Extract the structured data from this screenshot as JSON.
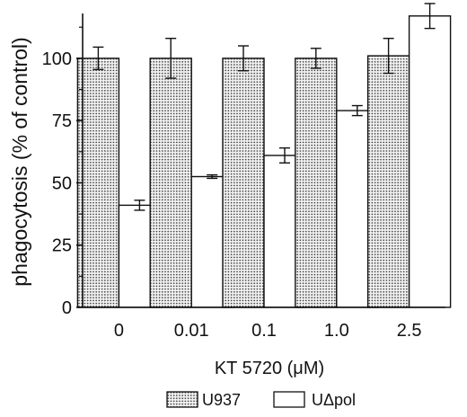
{
  "chart_data": {
    "type": "bar",
    "xlabel": "KT 5720 (μM)",
    "ylabel": "phagocytosis (% of control)",
    "categories": [
      "0",
      "0.01",
      "0.1",
      "1.0",
      "2.5"
    ],
    "ylim": [
      0,
      118
    ],
    "yticks": [
      0,
      25,
      50,
      75,
      100
    ],
    "grid": false,
    "legend_position": "bottom-center",
    "series": [
      {
        "name": "U937",
        "values": [
          100,
          100,
          100,
          100,
          101
        ],
        "errors": [
          4.5,
          8,
          5,
          4,
          7
        ],
        "fill": "pattern-dots"
      },
      {
        "name": "UΔpol",
        "values": [
          41,
          52.5,
          61,
          79,
          117
        ],
        "errors": [
          2,
          0.7,
          3,
          2,
          5
        ],
        "fill": "#ffffff"
      }
    ],
    "colors": {
      "stroke": "#111111",
      "dot_fill": "#3a3a3a",
      "bar_background": "#f2f2f2"
    }
  }
}
